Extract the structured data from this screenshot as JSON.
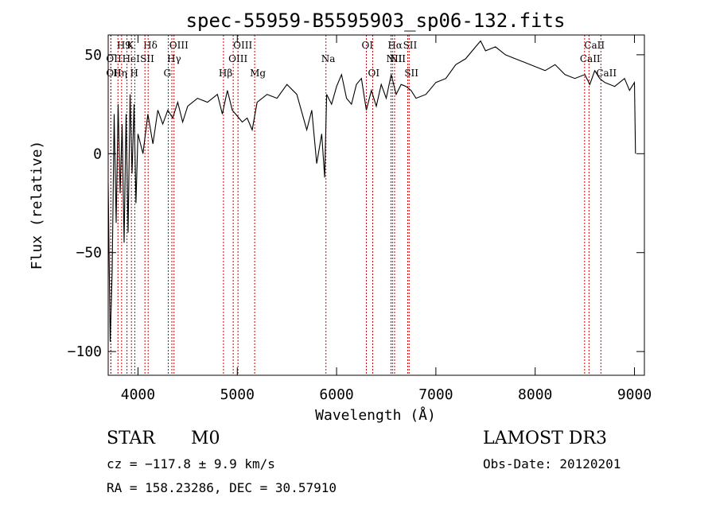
{
  "chart_data": {
    "type": "line",
    "title": "spec-55959-B5595903_sp06-132.fits",
    "xlabel": "Wavelength (Å)",
    "ylabel": "Flux (relative)",
    "xlim": [
      3700,
      9100
    ],
    "ylim": [
      -112,
      60
    ],
    "xticks": [
      4000,
      5000,
      6000,
      7000,
      8000,
      9000
    ],
    "yticks": [
      -100,
      -50,
      0,
      50
    ],
    "series": [
      {
        "name": "flux",
        "x": [
          3700,
          3720,
          3740,
          3760,
          3780,
          3800,
          3820,
          3840,
          3860,
          3880,
          3900,
          3920,
          3940,
          3960,
          3980,
          4000,
          4050,
          4100,
          4150,
          4200,
          4250,
          4300,
          4350,
          4400,
          4450,
          4500,
          4600,
          4700,
          4800,
          4850,
          4900,
          4950,
          5000,
          5050,
          5100,
          5150,
          5200,
          5300,
          5400,
          5500,
          5600,
          5700,
          5750,
          5800,
          5850,
          5880,
          5900,
          5950,
          6000,
          6050,
          6100,
          6150,
          6200,
          6250,
          6300,
          6350,
          6400,
          6450,
          6500,
          6550,
          6600,
          6650,
          6700,
          6750,
          6800,
          6900,
          7000,
          7100,
          7200,
          7300,
          7400,
          7450,
          7500,
          7600,
          7700,
          7800,
          7900,
          8000,
          8100,
          8200,
          8300,
          8400,
          8500,
          8550,
          8600,
          8650,
          8700,
          8800,
          8900,
          8950,
          9000,
          9010
        ],
        "values": [
          -15,
          -95,
          -60,
          20,
          -35,
          25,
          -20,
          15,
          -45,
          20,
          -40,
          30,
          -10,
          25,
          -25,
          10,
          0,
          20,
          5,
          22,
          15,
          22,
          18,
          26,
          16,
          24,
          28,
          26,
          30,
          20,
          32,
          22,
          19,
          16,
          18,
          12,
          26,
          30,
          28,
          35,
          30,
          12,
          22,
          -5,
          10,
          -12,
          30,
          25,
          34,
          40,
          28,
          25,
          35,
          38,
          22,
          32,
          24,
          35,
          28,
          40,
          30,
          35,
          34,
          32,
          28,
          30,
          36,
          38,
          45,
          48,
          54,
          57,
          52,
          54,
          50,
          48,
          46,
          44,
          42,
          45,
          40,
          38,
          40,
          35,
          42,
          38,
          36,
          34,
          38,
          32,
          36,
          0
        ]
      }
    ],
    "line_markers": [
      {
        "label": "H9",
        "x": 3835,
        "row": 1
      },
      {
        "label": "K",
        "x": 3934,
        "row": 1
      },
      {
        "label": "Hδ",
        "x": 4102,
        "row": 1
      },
      {
        "label": "OII",
        "x": 3727,
        "row": 2
      },
      {
        "label": "HeI",
        "x": 3889,
        "row": 2
      },
      {
        "label": "SII",
        "x": 4070,
        "row": 2
      },
      {
        "label": "OII",
        "x": 3727,
        "row": 3
      },
      {
        "label": "Hη",
        "x": 3798,
        "row": 3
      },
      {
        "label": "H",
        "x": 3968,
        "row": 3
      },
      {
        "label": "OIII",
        "x": 4363,
        "row": 1
      },
      {
        "label": "Hγ",
        "x": 4341,
        "row": 2
      },
      {
        "label": "G",
        "x": 4305,
        "row": 3
      },
      {
        "label": "OIII",
        "x": 5007,
        "row": 1
      },
      {
        "label": "OIII",
        "x": 4959,
        "row": 2
      },
      {
        "label": "Hβ",
        "x": 4861,
        "row": 3
      },
      {
        "label": "Mg",
        "x": 5175,
        "row": 3
      },
      {
        "label": "Na",
        "x": 5893,
        "row": 2
      },
      {
        "label": "OI",
        "x": 6300,
        "row": 1
      },
      {
        "label": "OI",
        "x": 6364,
        "row": 3
      },
      {
        "label": "Hα",
        "x": 6563,
        "row": 1
      },
      {
        "label": "SII",
        "x": 6717,
        "row": 1
      },
      {
        "label": "NII",
        "x": 6548,
        "row": 2
      },
      {
        "label": "NII",
        "x": 6584,
        "row": 2
      },
      {
        "label": "SII",
        "x": 6731,
        "row": 3
      },
      {
        "label": "CaII",
        "x": 8542,
        "row": 1
      },
      {
        "label": "CaII",
        "x": 8498,
        "row": 2
      },
      {
        "label": "CaII",
        "x": 8662,
        "row": 3
      }
    ]
  },
  "info": {
    "class_label": "STAR",
    "subclass_label": "M0",
    "survey": "LAMOST DR3",
    "cz": "cz = −117.8 ± 9.9 km/s",
    "obs_date": "Obs-Date: 20120201",
    "coords": "RA = 158.23286, DEC =  30.57910"
  }
}
